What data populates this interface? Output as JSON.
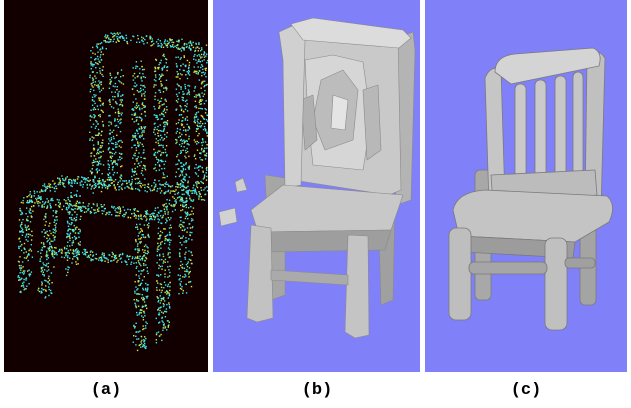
{
  "figure": {
    "panels": [
      {
        "caption": "(a)",
        "content": "point-cloud-chair",
        "background_color": "#120000",
        "point_colors": [
          "#3fe8e8",
          "#d8e83a"
        ]
      },
      {
        "caption": "(b)",
        "content": "faceted-mesh-chair",
        "background_color": "#8080f8",
        "surface_color": "#c8c8c8"
      },
      {
        "caption": "(c)",
        "content": "smooth-mesh-chair",
        "background_color": "#8080f8",
        "surface_color": "#c4c4c4"
      }
    ]
  }
}
